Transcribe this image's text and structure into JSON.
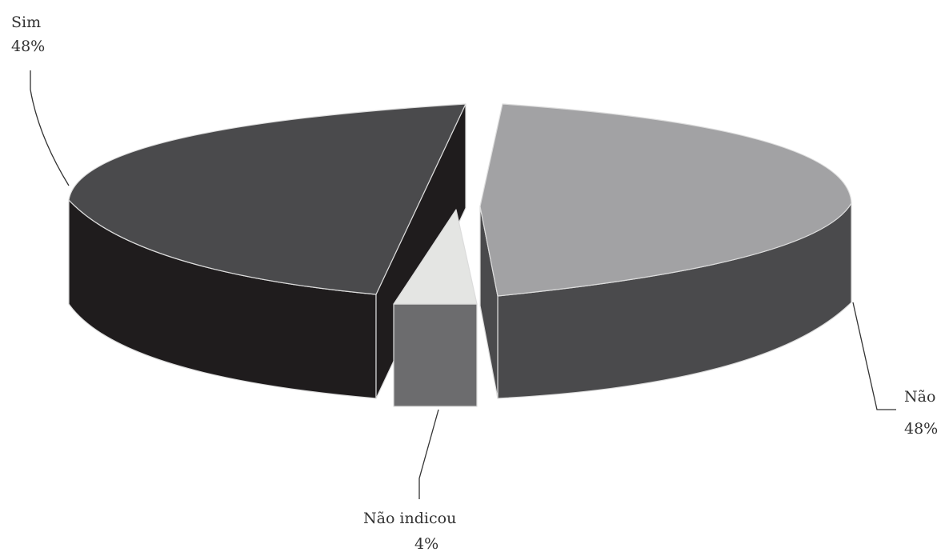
{
  "chart_data": {
    "type": "pie",
    "categories": [
      "Sim",
      "Não",
      "Não indicou"
    ],
    "values": [
      48,
      48,
      4
    ],
    "value_labels": [
      "48%",
      "48%",
      "4%"
    ],
    "colors": {
      "Sim": {
        "top": "#4a4a4c",
        "side": "#1f1c1d"
      },
      "Não": {
        "top": "#a2a2a4",
        "side": "#4a4a4c"
      },
      "Não indicou": {
        "top": "#e4e5e3",
        "side": "#6c6c6e"
      }
    },
    "three_d": true,
    "exploded": true
  }
}
